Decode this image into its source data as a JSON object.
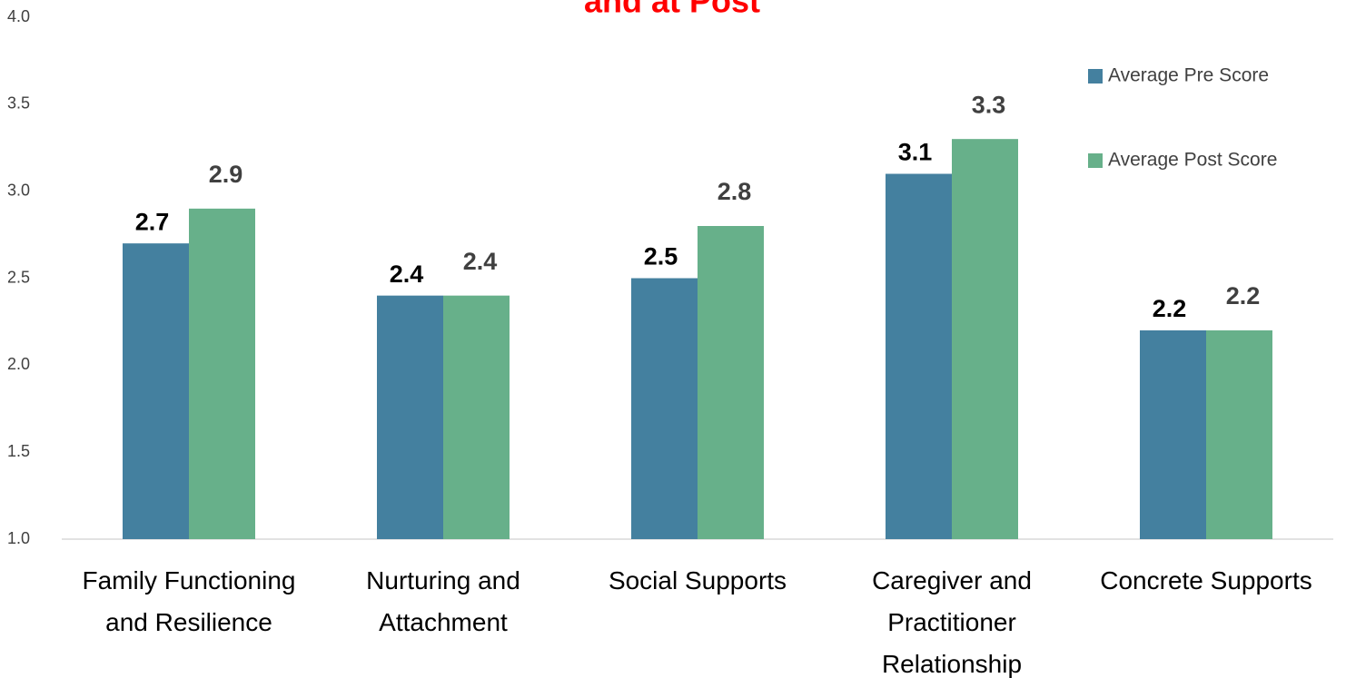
{
  "chart_data": {
    "type": "bar",
    "title": "and at Post",
    "categories": [
      "Family Functioning and Resilience",
      "Nurturing and Attachment",
      "Social Supports",
      "Caregiver and Practitioner Relationship",
      "Concrete Supports"
    ],
    "series": [
      {
        "name": "Average Pre Score",
        "color": "#44809f",
        "values": [
          2.7,
          2.4,
          2.5,
          3.1,
          2.2
        ]
      },
      {
        "name": "Average Post Score",
        "color": "#67b08a",
        "values": [
          2.9,
          2.4,
          2.8,
          3.3,
          2.2
        ]
      }
    ],
    "ylim": [
      1,
      4
    ],
    "yticks": [
      {
        "value": 1,
        "label": "1.0"
      },
      1.5,
      {
        "value": 2,
        "label": "2.0"
      },
      2.5,
      {
        "value": 3,
        "label": "3.0"
      },
      3.5,
      {
        "value": 4,
        "label": "4.0"
      }
    ],
    "legend": "top-right",
    "grid": false
  }
}
